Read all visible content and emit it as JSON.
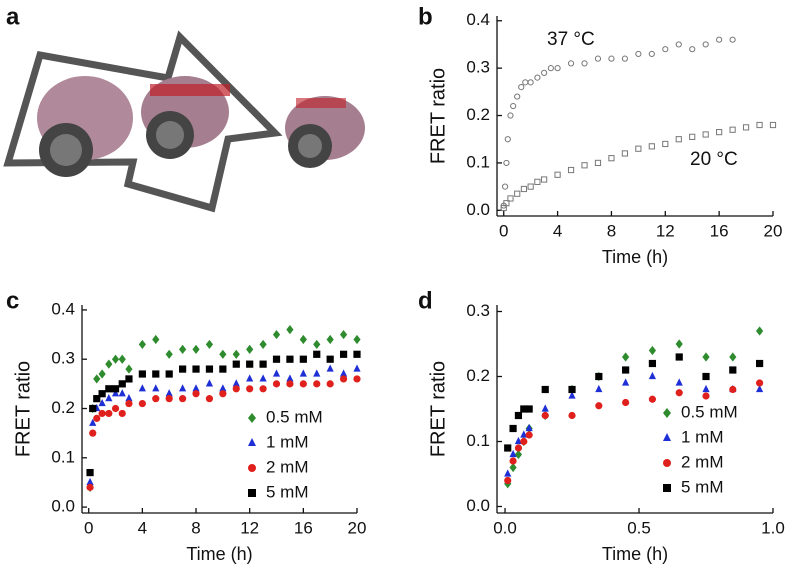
{
  "panel_a": {
    "label": "a"
  },
  "chart_data": [
    {
      "type": "scatter",
      "label": "b",
      "xlabel": "Time (h)",
      "ylabel": "FRET ratio",
      "xlim": [
        -0.5,
        20
      ],
      "ylim": [
        -0.012,
        0.41
      ],
      "xticks": [
        0,
        4,
        8,
        12,
        16,
        20
      ],
      "yticks": [
        {
          "value": 0,
          "label": "0.0"
        },
        0.1,
        0.2,
        0.3,
        0.4
      ],
      "annotations": [
        "37 °C",
        "20 °C"
      ],
      "series": [
        {
          "marker": "circle-open",
          "color": "#777777",
          "x": [
            0,
            0.1,
            0.2,
            0.3,
            0.5,
            0.7,
            1,
            1.3,
            1.6,
            2,
            2.5,
            3,
            3.5,
            4,
            5,
            6,
            7,
            8,
            9,
            10,
            11,
            12,
            13,
            14,
            15,
            16,
            17
          ],
          "values": [
            0.01,
            0.05,
            0.1,
            0.15,
            0.2,
            0.22,
            0.24,
            0.26,
            0.27,
            0.27,
            0.28,
            0.29,
            0.3,
            0.3,
            0.31,
            0.31,
            0.32,
            0.32,
            0.32,
            0.33,
            0.33,
            0.34,
            0.35,
            0.34,
            0.35,
            0.36,
            0.36
          ]
        },
        {
          "marker": "square-open",
          "color": "#777777",
          "x": [
            0,
            0.2,
            0.5,
            1,
            1.5,
            2,
            2.5,
            3,
            4,
            5,
            6,
            7,
            8,
            9,
            10,
            11,
            12,
            13,
            14,
            15,
            16,
            17,
            18,
            19,
            20
          ],
          "values": [
            0.005,
            0.015,
            0.025,
            0.035,
            0.045,
            0.05,
            0.06,
            0.065,
            0.075,
            0.085,
            0.095,
            0.1,
            0.11,
            0.12,
            0.13,
            0.135,
            0.14,
            0.15,
            0.155,
            0.16,
            0.165,
            0.17,
            0.175,
            0.18,
            0.18
          ]
        }
      ]
    },
    {
      "type": "scatter",
      "label": "c",
      "xlabel": "Time (h)",
      "ylabel": "FRET ratio",
      "xlim": [
        -0.5,
        20
      ],
      "ylim": [
        -0.012,
        0.41
      ],
      "xticks": [
        0,
        4,
        8,
        12,
        16,
        20
      ],
      "yticks": [
        {
          "value": 0,
          "label": "0.0"
        },
        0.1,
        0.2,
        0.3,
        0.4
      ],
      "series": [
        {
          "name": "0.5 mM",
          "marker": "diamond",
          "color": "#2e8b2e",
          "x": [
            0.1,
            0.3,
            0.6,
            1,
            1.5,
            2,
            2.5,
            3,
            4,
            5,
            6,
            7,
            8,
            9,
            10,
            11,
            12,
            13,
            14,
            15,
            16,
            17,
            18,
            19,
            20
          ],
          "values": [
            0.04,
            0.2,
            0.26,
            0.27,
            0.29,
            0.3,
            0.3,
            0.28,
            0.33,
            0.34,
            0.31,
            0.32,
            0.32,
            0.33,
            0.31,
            0.31,
            0.32,
            0.33,
            0.35,
            0.36,
            0.34,
            0.33,
            0.34,
            0.35,
            0.34
          ]
        },
        {
          "name": "1 mM",
          "marker": "triangle",
          "color": "#1f2fd6",
          "x": [
            0.1,
            0.3,
            0.6,
            1,
            1.5,
            2,
            2.5,
            3,
            4,
            5,
            6,
            7,
            8,
            9,
            10,
            11,
            12,
            13,
            14,
            15,
            16,
            17,
            18,
            19,
            20
          ],
          "values": [
            0.05,
            0.17,
            0.2,
            0.21,
            0.22,
            0.23,
            0.23,
            0.22,
            0.24,
            0.24,
            0.23,
            0.24,
            0.24,
            0.25,
            0.24,
            0.25,
            0.26,
            0.26,
            0.27,
            0.26,
            0.27,
            0.27,
            0.28,
            0.27,
            0.28
          ]
        },
        {
          "name": "2 mM",
          "marker": "circle",
          "color": "#e0201c",
          "x": [
            0.1,
            0.3,
            0.6,
            1,
            1.5,
            2,
            2.5,
            3,
            4,
            5,
            6,
            7,
            8,
            9,
            10,
            11,
            12,
            13,
            14,
            15,
            16,
            17,
            18,
            19,
            20
          ],
          "values": [
            0.04,
            0.15,
            0.18,
            0.19,
            0.19,
            0.2,
            0.19,
            0.21,
            0.21,
            0.22,
            0.22,
            0.22,
            0.23,
            0.22,
            0.23,
            0.24,
            0.24,
            0.24,
            0.25,
            0.25,
            0.25,
            0.25,
            0.25,
            0.26,
            0.26
          ]
        },
        {
          "name": "5 mM",
          "marker": "square",
          "color": "#000000",
          "x": [
            0.1,
            0.3,
            0.6,
            1,
            1.5,
            2,
            2.5,
            3,
            4,
            5,
            6,
            7,
            8,
            9,
            10,
            11,
            12,
            13,
            14,
            15,
            16,
            17,
            18,
            19,
            20
          ],
          "values": [
            0.07,
            0.2,
            0.22,
            0.23,
            0.24,
            0.24,
            0.25,
            0.26,
            0.27,
            0.27,
            0.27,
            0.28,
            0.28,
            0.28,
            0.28,
            0.29,
            0.29,
            0.29,
            0.3,
            0.3,
            0.3,
            0.31,
            0.3,
            0.31,
            0.31
          ]
        }
      ]
    },
    {
      "type": "scatter",
      "label": "d",
      "xlabel": "Time (h)",
      "ylabel": "FRET ratio",
      "xlim": [
        -0.03,
        1.0
      ],
      "ylim": [
        -0.01,
        0.31
      ],
      "xticks": [
        {
          "value": 0,
          "label": "0.0"
        },
        0.5,
        {
          "value": 1,
          "label": "1.0"
        }
      ],
      "yticks": [
        {
          "value": 0,
          "label": "0.0"
        },
        0.1,
        0.2,
        0.3
      ],
      "series": [
        {
          "name": "0.5 mM",
          "marker": "diamond",
          "color": "#2e8b2e",
          "x": [
            0.01,
            0.03,
            0.05,
            0.07,
            0.09,
            0.15,
            0.25,
            0.35,
            0.45,
            0.55,
            0.65,
            0.75,
            0.85,
            0.95
          ],
          "values": [
            0.035,
            0.06,
            0.08,
            0.1,
            0.12,
            0.14,
            0.18,
            0.2,
            0.23,
            0.24,
            0.25,
            0.23,
            0.23,
            0.27
          ]
        },
        {
          "name": "1 mM",
          "marker": "triangle",
          "color": "#1f2fd6",
          "x": [
            0.01,
            0.03,
            0.05,
            0.07,
            0.09,
            0.15,
            0.25,
            0.35,
            0.45,
            0.55,
            0.65,
            0.75,
            0.85,
            0.95
          ],
          "values": [
            0.05,
            0.08,
            0.1,
            0.11,
            0.12,
            0.15,
            0.17,
            0.18,
            0.19,
            0.2,
            0.19,
            0.18,
            0.18,
            0.18
          ]
        },
        {
          "name": "2 mM",
          "marker": "circle",
          "color": "#e0201c",
          "x": [
            0.01,
            0.03,
            0.05,
            0.07,
            0.09,
            0.15,
            0.25,
            0.35,
            0.45,
            0.55,
            0.65,
            0.75,
            0.85,
            0.95
          ],
          "values": [
            0.04,
            0.07,
            0.09,
            0.1,
            0.11,
            0.14,
            0.14,
            0.155,
            0.16,
            0.165,
            0.175,
            0.17,
            0.18,
            0.19
          ]
        },
        {
          "name": "5 mM",
          "marker": "square",
          "color": "#000000",
          "x": [
            0.01,
            0.03,
            0.05,
            0.07,
            0.09,
            0.15,
            0.25,
            0.35,
            0.45,
            0.55,
            0.65,
            0.75,
            0.85,
            0.95
          ],
          "values": [
            0.09,
            0.12,
            0.14,
            0.15,
            0.15,
            0.18,
            0.18,
            0.2,
            0.21,
            0.22,
            0.23,
            0.2,
            0.21,
            0.22
          ]
        }
      ]
    }
  ]
}
